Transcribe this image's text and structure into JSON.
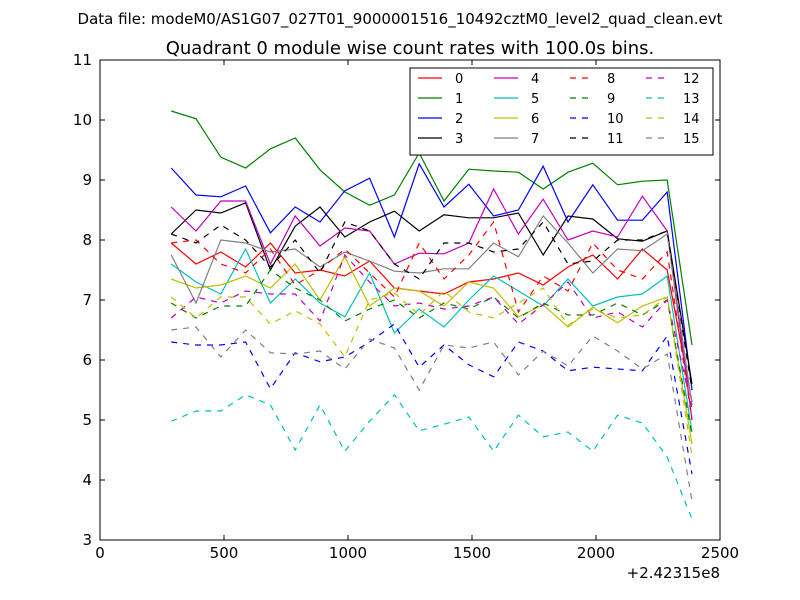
{
  "figure": {
    "suptitle": "Data file: modeM0/AS1G07_027T01_9000001516_10492cztM0_level2_quad_clean.evt",
    "title": "Quadrant 0 module wise count rates with 100.0s bins.",
    "x_offset_label": "+2.42315e8"
  },
  "chart_data": {
    "type": "line",
    "title": "Quadrant 0 module wise count rates with 100.0s bins.",
    "xlabel": "",
    "ylabel": "",
    "xlim": [
      0,
      2500
    ],
    "ylim": [
      3,
      11
    ],
    "x_offset": 242315000,
    "xticks": [
      0,
      500,
      1000,
      1500,
      2000,
      2500
    ],
    "yticks": [
      3,
      4,
      5,
      6,
      7,
      8,
      9,
      10,
      11
    ],
    "grid": false,
    "legend": {
      "location": "upper right",
      "columns": 4
    },
    "x": [
      287,
      387,
      487,
      587,
      687,
      787,
      887,
      987,
      1087,
      1187,
      1287,
      1387,
      1487,
      1587,
      1687,
      1787,
      1887,
      1987,
      2087,
      2187,
      2287,
      2387
    ],
    "series": [
      {
        "name": "0",
        "color": "#ff0000",
        "dash": "solid",
        "values": [
          7.95,
          7.6,
          7.8,
          7.55,
          7.95,
          7.45,
          7.5,
          7.4,
          7.65,
          7.2,
          7.15,
          7.1,
          7.3,
          7.35,
          7.45,
          7.25,
          7.55,
          7.75,
          7.35,
          7.85,
          7.5,
          5.3
        ]
      },
      {
        "name": "1",
        "color": "#008000",
        "dash": "solid",
        "values": [
          10.15,
          10.02,
          9.38,
          9.2,
          9.52,
          9.7,
          9.17,
          8.8,
          8.58,
          8.75,
          9.45,
          8.65,
          9.18,
          9.15,
          9.13,
          8.85,
          9.13,
          9.28,
          8.92,
          8.98,
          9.0,
          6.25
        ]
      },
      {
        "name": "2",
        "color": "#0000ff",
        "dash": "solid",
        "values": [
          9.2,
          8.75,
          8.72,
          8.9,
          8.12,
          8.55,
          8.3,
          8.82,
          9.03,
          8.05,
          9.27,
          8.55,
          8.93,
          8.4,
          8.5,
          9.23,
          8.3,
          8.92,
          8.33,
          8.33,
          8.8,
          5.5
        ]
      },
      {
        "name": "3",
        "color": "#000000",
        "dash": "solid",
        "values": [
          8.1,
          8.5,
          8.45,
          8.62,
          7.5,
          8.23,
          8.55,
          8.05,
          8.3,
          8.48,
          8.15,
          8.42,
          8.37,
          8.37,
          8.45,
          7.75,
          8.4,
          8.35,
          8.02,
          7.98,
          8.15,
          5.6
        ]
      },
      {
        "name": "4",
        "color": "#bf00bf",
        "dash": "solid",
        "values": [
          8.55,
          8.15,
          8.65,
          8.65,
          7.6,
          8.4,
          7.9,
          8.2,
          8.15,
          7.6,
          7.78,
          7.77,
          7.95,
          8.85,
          8.1,
          8.68,
          8.0,
          8.15,
          8.05,
          8.73,
          8.15,
          5.0
        ]
      },
      {
        "name": "5",
        "color": "#00bfbf",
        "dash": "solid",
        "values": [
          7.6,
          7.3,
          7.1,
          7.85,
          6.95,
          7.35,
          6.95,
          6.72,
          7.45,
          6.45,
          6.85,
          6.55,
          7.0,
          7.4,
          7.15,
          6.9,
          7.35,
          6.9,
          7.05,
          7.1,
          7.4,
          4.8
        ]
      },
      {
        "name": "6",
        "color": "#bfbf00",
        "dash": "solid",
        "values": [
          7.35,
          7.2,
          7.25,
          7.4,
          7.2,
          7.6,
          7.0,
          7.72,
          6.9,
          7.2,
          7.15,
          6.9,
          7.3,
          7.2,
          6.72,
          6.92,
          6.55,
          6.88,
          6.62,
          6.9,
          7.05,
          4.6
        ]
      },
      {
        "name": "7",
        "color": "#808080",
        "dash": "solid",
        "values": [
          7.75,
          6.95,
          8.0,
          7.95,
          7.8,
          7.85,
          7.55,
          7.8,
          7.65,
          7.48,
          7.45,
          7.52,
          7.52,
          7.95,
          7.72,
          8.4,
          7.95,
          7.45,
          7.85,
          7.82,
          8.1,
          5.25
        ]
      },
      {
        "name": "8",
        "color": "#ff0000",
        "dash": "dashed",
        "values": [
          7.95,
          8.0,
          7.6,
          7.45,
          7.85,
          7.25,
          7.5,
          7.85,
          7.45,
          7.05,
          7.95,
          7.35,
          7.75,
          8.3,
          6.8,
          7.4,
          7.15,
          7.95,
          7.5,
          7.35,
          7.8,
          5.0
        ]
      },
      {
        "name": "9",
        "color": "#008000",
        "dash": "dashed",
        "values": [
          6.95,
          6.7,
          6.9,
          6.9,
          7.5,
          7.2,
          7.0,
          6.65,
          6.85,
          7.0,
          6.7,
          6.95,
          6.85,
          7.05,
          6.7,
          6.95,
          6.75,
          6.75,
          6.95,
          6.75,
          7.0,
          4.75
        ]
      },
      {
        "name": "10",
        "color": "#0000ff",
        "dash": "dashed",
        "values": [
          6.3,
          6.25,
          6.25,
          6.3,
          5.52,
          6.12,
          5.97,
          6.05,
          6.3,
          6.6,
          5.88,
          6.25,
          5.92,
          5.72,
          6.3,
          6.15,
          5.82,
          5.88,
          5.85,
          5.82,
          6.4,
          4.1
        ]
      },
      {
        "name": "11",
        "color": "#000000",
        "dash": "dashed",
        "values": [
          8.1,
          7.95,
          8.25,
          8.0,
          7.55,
          8.0,
          7.45,
          8.3,
          8.15,
          7.6,
          7.35,
          7.95,
          7.95,
          7.8,
          7.85,
          8.3,
          7.6,
          7.65,
          8.0,
          8.0,
          8.15,
          5.5
        ]
      },
      {
        "name": "12",
        "color": "#bf00bf",
        "dash": "dashed",
        "values": [
          6.7,
          7.05,
          6.95,
          7.15,
          7.1,
          7.1,
          6.65,
          7.75,
          7.3,
          6.9,
          6.95,
          6.85,
          6.9,
          7.05,
          6.6,
          6.92,
          7.3,
          6.7,
          6.8,
          6.55,
          7.0,
          5.2
        ]
      },
      {
        "name": "13",
        "color": "#00bfbf",
        "dash": "dashed",
        "values": [
          4.98,
          5.15,
          5.15,
          5.42,
          5.25,
          4.5,
          5.25,
          4.48,
          4.98,
          5.42,
          4.82,
          4.93,
          5.05,
          4.48,
          5.08,
          4.72,
          4.8,
          4.48,
          5.08,
          4.95,
          4.38,
          3.35
        ]
      },
      {
        "name": "14",
        "color": "#bfbf00",
        "dash": "dashed",
        "values": [
          7.05,
          6.7,
          7.05,
          7.05,
          6.6,
          6.82,
          6.6,
          6.05,
          7.0,
          7.12,
          6.75,
          7.15,
          6.8,
          6.7,
          6.95,
          7.2,
          6.58,
          6.85,
          6.7,
          6.75,
          7.05,
          4.4
        ]
      },
      {
        "name": "15",
        "color": "#808080",
        "dash": "dashed",
        "values": [
          6.5,
          6.55,
          6.05,
          6.5,
          6.12,
          6.1,
          6.15,
          5.85,
          6.35,
          6.2,
          5.5,
          6.25,
          6.2,
          6.3,
          5.75,
          6.15,
          5.9,
          6.4,
          6.15,
          5.85,
          6.1,
          3.65
        ]
      }
    ]
  }
}
